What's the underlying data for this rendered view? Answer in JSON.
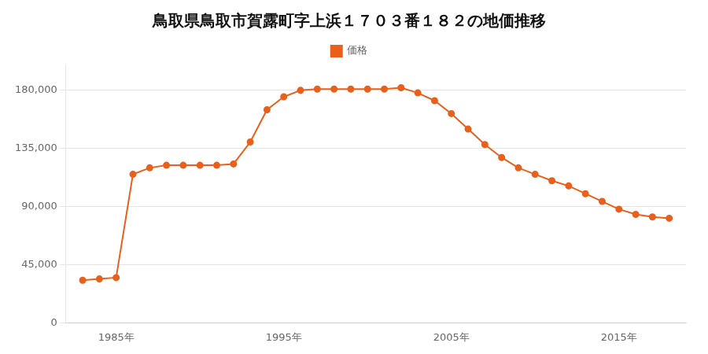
{
  "chart_data": {
    "type": "line",
    "title": "鳥取県鳥取市賀露町字上浜１７０３番１８２の地価推移",
    "x": [
      1983,
      1984,
      1985,
      1986,
      1987,
      1988,
      1989,
      1990,
      1991,
      1992,
      1993,
      1994,
      1995,
      1996,
      1997,
      1998,
      1999,
      2000,
      2001,
      2002,
      2003,
      2004,
      2005,
      2006,
      2007,
      2008,
      2009,
      2010,
      2011,
      2012,
      2013,
      2014,
      2015,
      2016,
      2017,
      2018
    ],
    "series": [
      {
        "name": "価格",
        "color": "#E8601C",
        "marker": "circle",
        "values": [
          33000,
          34000,
          35000,
          115000,
          120000,
          122000,
          122000,
          122000,
          122000,
          123000,
          140000,
          165000,
          175000,
          180000,
          181000,
          181000,
          181000,
          181000,
          181000,
          182000,
          178000,
          172000,
          162000,
          150000,
          138000,
          128000,
          120000,
          115000,
          110000,
          106000,
          100000,
          94000,
          88000,
          84000,
          82000,
          81000
        ]
      }
    ],
    "xlim": [
      1982,
      2019
    ],
    "xticks": [
      {
        "value": 1985,
        "label": "1985年"
      },
      {
        "value": 1995,
        "label": "1995年"
      },
      {
        "value": 2005,
        "label": "2005年"
      },
      {
        "value": 2015,
        "label": "2015年"
      }
    ],
    "ylim": [
      0,
      200000
    ],
    "yticks": [
      0,
      {
        "value": 45000,
        "label": "45,000"
      },
      {
        "value": 90000,
        "label": "90,000"
      },
      {
        "value": 135000,
        "label": "135,000"
      },
      {
        "value": 180000,
        "label": "180,000"
      }
    ],
    "grid": "y",
    "legend": "top"
  }
}
